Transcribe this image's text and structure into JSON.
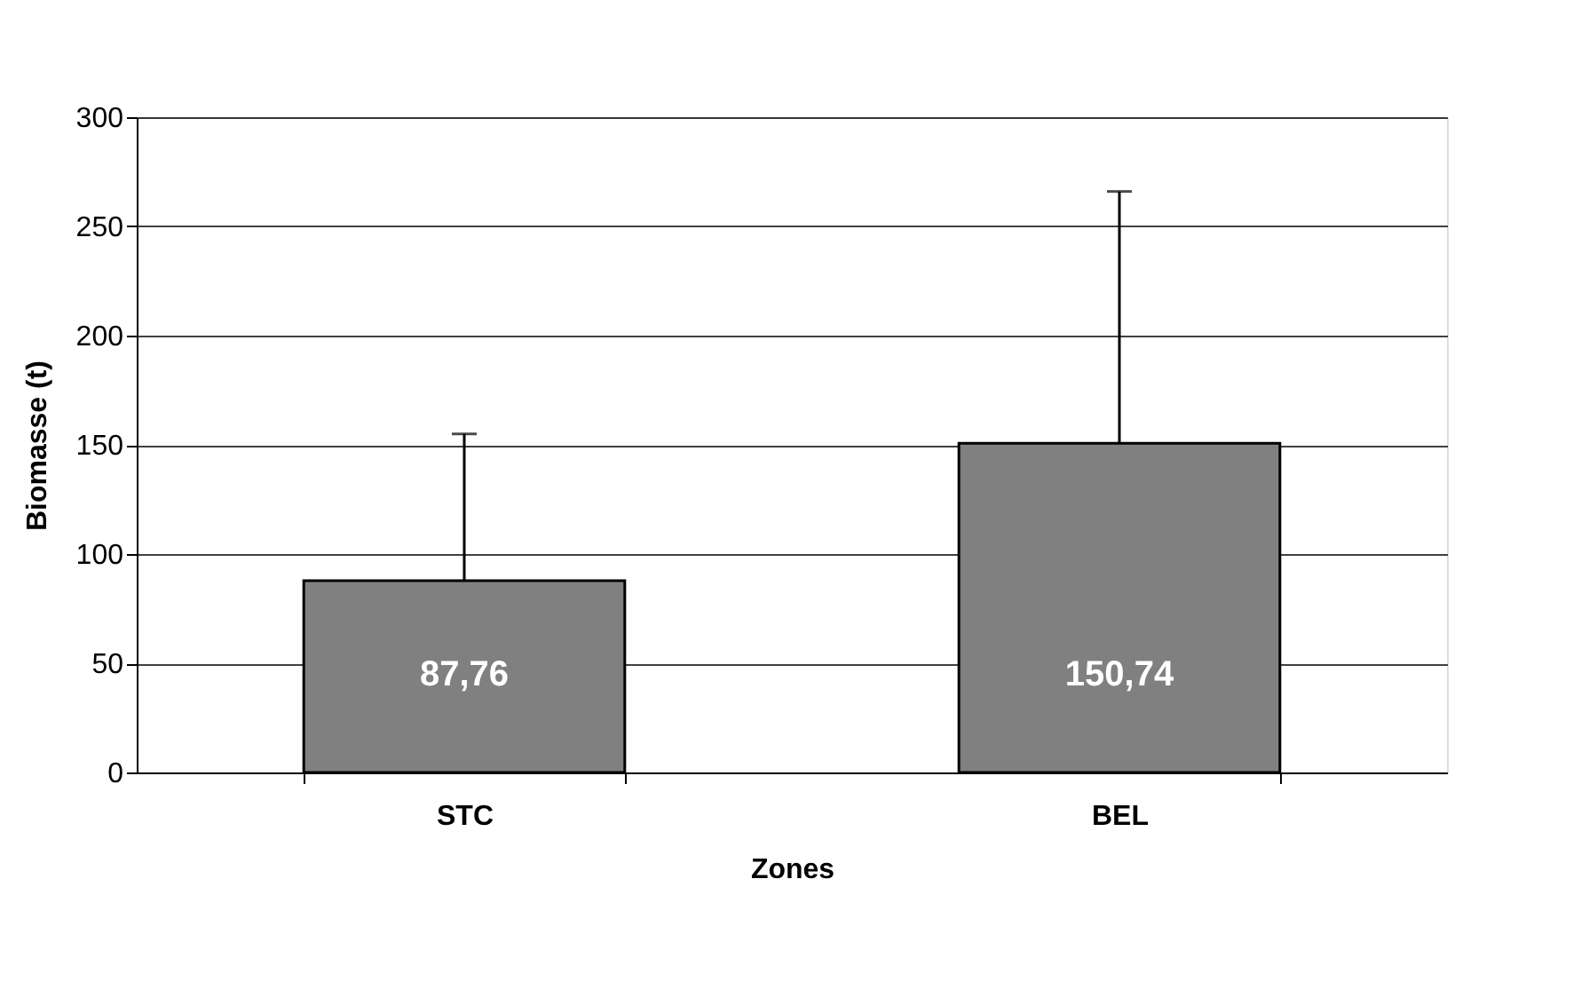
{
  "chart_data": {
    "type": "bar",
    "xlabel": "Zones",
    "ylabel": "Biomasse (t)",
    "categories": [
      "STC",
      "BEL"
    ],
    "values": [
      87.76,
      150.74
    ],
    "color": "#808080",
    "errors": [
      [
        87.76,
        155
      ],
      [
        150.74,
        266
      ]
    ],
    "value_labels": [
      "87,76",
      "150,74"
    ],
    "ylim": [
      0,
      300
    ],
    "yticks": [
      0,
      50,
      100,
      150,
      200,
      250,
      300
    ],
    "grid": "y"
  }
}
